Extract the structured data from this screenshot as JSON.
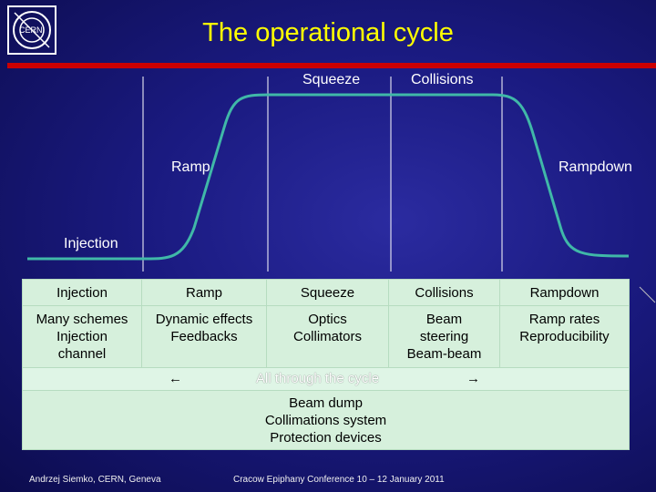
{
  "logo": {
    "text": "CERN"
  },
  "title": "The operational cycle",
  "cycle_labels": {
    "squeeze": "Squeeze",
    "collisions": "Collisions",
    "ramp": "Ramp",
    "rampdown": "Rampdown",
    "injection": "Injection"
  },
  "table": {
    "headers": [
      "Injection",
      "Ramp",
      "Squeeze",
      "Collisions",
      "Rampdown"
    ],
    "cells": [
      [
        "Many schemes",
        "Injection",
        "channel"
      ],
      [
        "Dynamic effects",
        "Feedbacks"
      ],
      [
        "Optics",
        "Collimators"
      ],
      [
        "Beam",
        "steering",
        "Beam-beam"
      ],
      [
        "Ramp rates",
        "Reproducibility"
      ]
    ],
    "through_text": "All through the cycle",
    "arrow_left": "←",
    "arrow_right": "→",
    "footer_lines": [
      "Beam dump",
      "Collimations system",
      "Protection devices"
    ]
  },
  "footer": {
    "left": "Andrzej Siemko, CERN, Geneva",
    "right": "Cracow Epiphany Conference   10 – 12 January 2011"
  },
  "colors": {
    "title": "#ffff00",
    "curve": "#40b8a8",
    "rule": "#cc0000",
    "table_bg": "#d6f0dc"
  }
}
